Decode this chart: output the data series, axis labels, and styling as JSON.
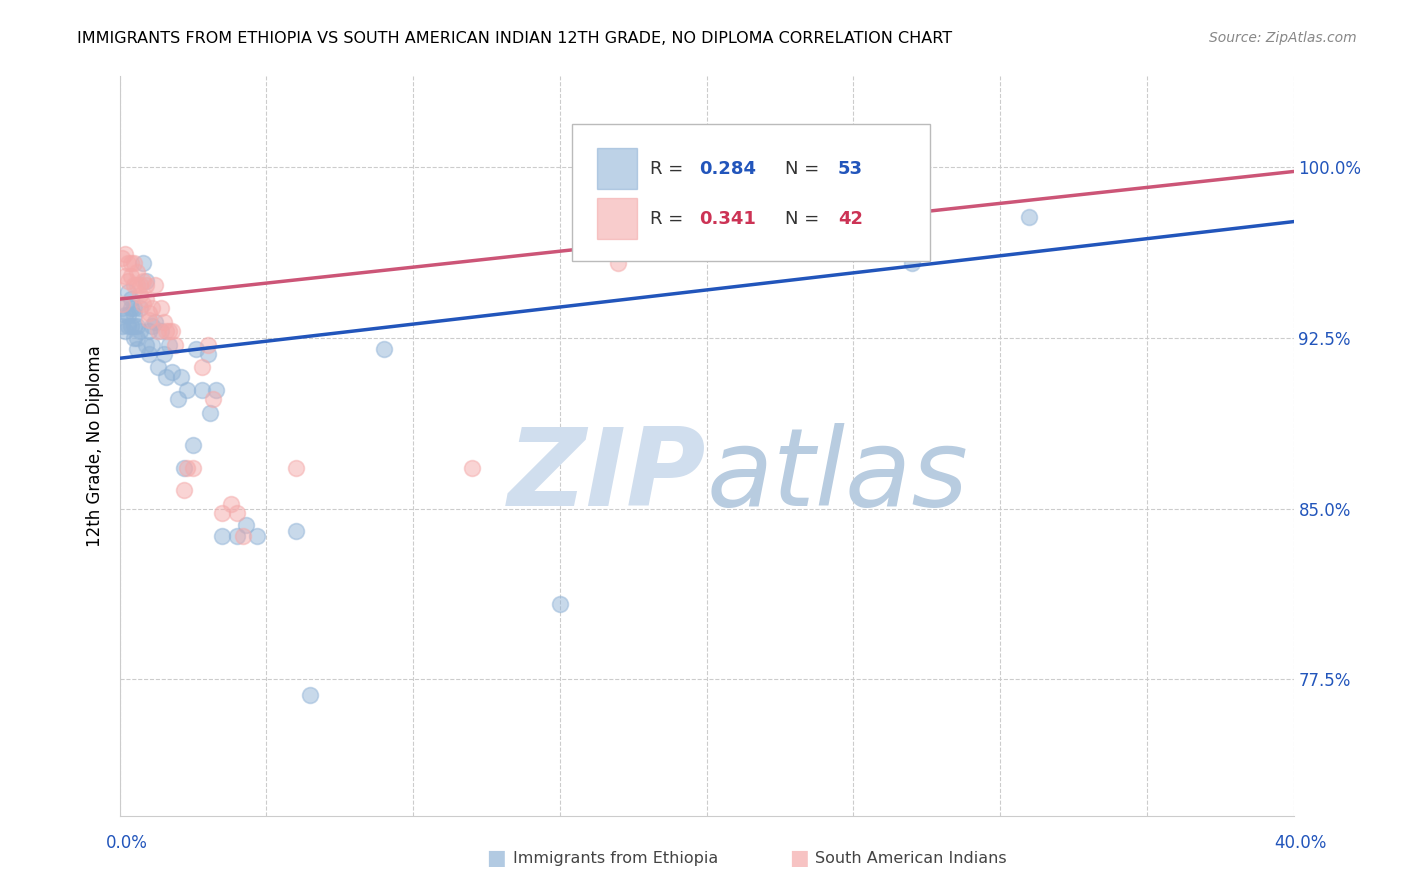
{
  "title": "IMMIGRANTS FROM ETHIOPIA VS SOUTH AMERICAN INDIAN 12TH GRADE, NO DIPLOMA CORRELATION CHART",
  "source": "Source: ZipAtlas.com",
  "ylabel": "12th Grade, No Diploma",
  "ylabel_ticks": [
    "100.0%",
    "92.5%",
    "85.0%",
    "77.5%"
  ],
  "ylabel_values": [
    1.0,
    0.925,
    0.85,
    0.775
  ],
  "xlim": [
    0.0,
    0.4
  ],
  "ylim": [
    0.715,
    1.04
  ],
  "blue_color": "#92B4D7",
  "pink_color": "#F4AAAA",
  "line_blue": "#2255BB",
  "line_pink": "#CC5577",
  "blue_R": 0.284,
  "blue_N": 53,
  "pink_R": 0.341,
  "pink_N": 42,
  "blue_scatter_x": [
    0.001,
    0.001,
    0.002,
    0.002,
    0.003,
    0.003,
    0.003,
    0.004,
    0.004,
    0.004,
    0.005,
    0.005,
    0.005,
    0.005,
    0.006,
    0.006,
    0.006,
    0.007,
    0.007,
    0.008,
    0.009,
    0.009,
    0.01,
    0.01,
    0.011,
    0.011,
    0.012,
    0.013,
    0.014,
    0.015,
    0.016,
    0.017,
    0.018,
    0.02,
    0.021,
    0.022,
    0.023,
    0.025,
    0.026,
    0.028,
    0.03,
    0.031,
    0.033,
    0.035,
    0.04,
    0.043,
    0.047,
    0.06,
    0.065,
    0.09,
    0.15,
    0.27,
    0.31
  ],
  "blue_scatter_y": [
    0.93,
    0.938,
    0.928,
    0.935,
    0.93,
    0.935,
    0.945,
    0.93,
    0.938,
    0.942,
    0.925,
    0.93,
    0.935,
    0.938,
    0.92,
    0.925,
    0.93,
    0.928,
    0.938,
    0.958,
    0.95,
    0.922,
    0.918,
    0.928,
    0.922,
    0.93,
    0.932,
    0.912,
    0.928,
    0.918,
    0.908,
    0.922,
    0.91,
    0.898,
    0.908,
    0.868,
    0.902,
    0.878,
    0.92,
    0.902,
    0.918,
    0.892,
    0.902,
    0.838,
    0.838,
    0.843,
    0.838,
    0.84,
    0.768,
    0.92,
    0.808,
    0.958,
    0.978
  ],
  "pink_scatter_x": [
    0.001,
    0.001,
    0.002,
    0.002,
    0.003,
    0.003,
    0.004,
    0.004,
    0.005,
    0.005,
    0.006,
    0.006,
    0.007,
    0.007,
    0.008,
    0.008,
    0.009,
    0.009,
    0.01,
    0.01,
    0.011,
    0.012,
    0.013,
    0.014,
    0.015,
    0.016,
    0.017,
    0.018,
    0.019,
    0.022,
    0.023,
    0.025,
    0.028,
    0.03,
    0.032,
    0.035,
    0.038,
    0.04,
    0.042,
    0.06,
    0.12,
    0.17
  ],
  "pink_scatter_y": [
    0.94,
    0.96,
    0.962,
    0.952,
    0.958,
    0.95,
    0.952,
    0.958,
    0.948,
    0.958,
    0.948,
    0.954,
    0.944,
    0.948,
    0.94,
    0.95,
    0.942,
    0.948,
    0.933,
    0.936,
    0.938,
    0.948,
    0.928,
    0.938,
    0.932,
    0.928,
    0.928,
    0.928,
    0.922,
    0.858,
    0.868,
    0.868,
    0.912,
    0.922,
    0.898,
    0.848,
    0.852,
    0.848,
    0.838,
    0.868,
    0.868,
    0.958
  ],
  "blue_line_x0": 0.0,
  "blue_line_x1": 0.4,
  "blue_line_y0": 0.916,
  "blue_line_y1": 0.976,
  "pink_line_x0": 0.0,
  "pink_line_x1": 0.4,
  "pink_line_y0": 0.942,
  "pink_line_y1": 0.998,
  "x_tick_positions": [
    0.0,
    0.05,
    0.1,
    0.15,
    0.2,
    0.25,
    0.3,
    0.35,
    0.4
  ],
  "watermark_zip_color": "#D0DEEE",
  "watermark_atlas_color": "#B8CCE0"
}
